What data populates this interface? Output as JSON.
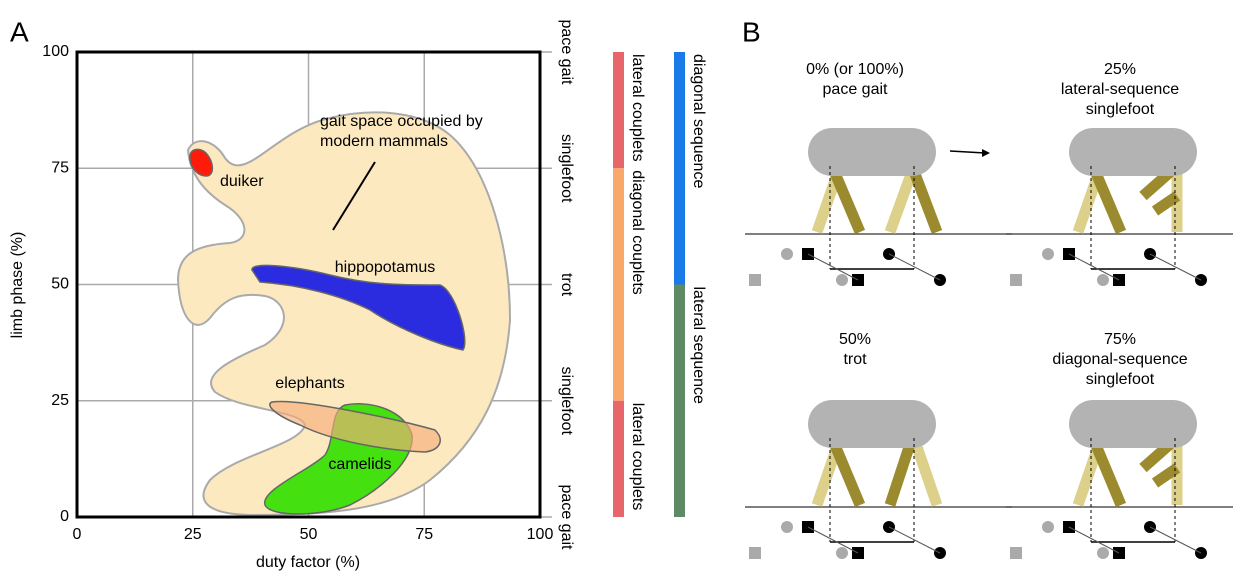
{
  "chart_data": {
    "type": "region",
    "xlabel": "duty factor (%)",
    "ylabel": "limb phase (%)",
    "xlim": [
      0,
      100
    ],
    "ylim": [
      0,
      100
    ],
    "xticks": [
      0,
      25,
      50,
      75,
      100
    ],
    "yticks": [
      0,
      25,
      50,
      75,
      100
    ],
    "grid": true,
    "y2lim": [
      0,
      100
    ],
    "y2ticks": [
      {
        "value": 100,
        "label": "pace gait"
      },
      {
        "value": 75,
        "label": "singlefoot"
      },
      {
        "value": 50,
        "label": "trot"
      },
      {
        "value": 25,
        "label": "singlefoot"
      },
      {
        "value": 0,
        "label": "pace gait"
      }
    ],
    "annotation": [
      "gait space occupied by",
      "modern mammals"
    ],
    "regions": [
      {
        "name": "duiker",
        "color": "#ff1a0a"
      },
      {
        "name": "hippopotamus",
        "color": "#2b2be0"
      },
      {
        "name": "elephants",
        "color": "#f7ae7a"
      },
      {
        "name": "camelids",
        "color": "#44e010"
      }
    ],
    "coupling_bands": [
      {
        "name": "lateral couplets",
        "from": 100,
        "to": 75,
        "color": "#e8656a"
      },
      {
        "name": "diagonal couplets",
        "from": 75,
        "to": 25,
        "color": "#f9a86a"
      },
      {
        "name": "lateral couplets",
        "from": 25,
        "to": 0,
        "color": "#e8656a"
      }
    ],
    "sequence_bands": [
      {
        "name": "diagonal sequence",
        "from": 100,
        "to": 50,
        "color": "#1a7be8"
      },
      {
        "name": "lateral sequence",
        "from": 50,
        "to": 0,
        "color": "#5e8a66"
      }
    ]
  },
  "panel_labels": [
    "A",
    "B"
  ],
  "diagrams": [
    {
      "lines": [
        "0% (or 100%)",
        "pace gait"
      ]
    },
    {
      "lines": [
        "25%",
        "lateral-sequence",
        "singlefoot"
      ]
    },
    {
      "lines": [
        "50%",
        "trot"
      ]
    },
    {
      "lines": [
        "75%",
        "diagonal-sequence",
        "singlefoot"
      ]
    }
  ]
}
